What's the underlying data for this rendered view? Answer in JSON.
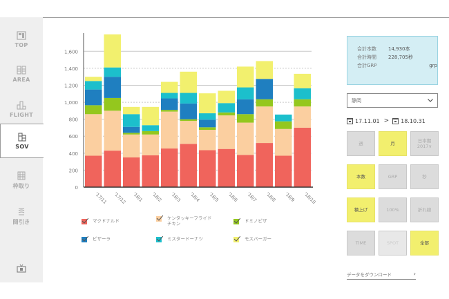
{
  "sidebar": {
    "items": [
      {
        "label": "TOP",
        "icon": "dashboard-icon"
      },
      {
        "label": "AREA",
        "icon": "grid-icon"
      },
      {
        "label": "FLIGHT",
        "icon": "bars-icon"
      },
      {
        "label": "SOV",
        "icon": "stacked-bars-icon",
        "active": true
      },
      {
        "label": "枠取り",
        "icon": "table-icon"
      },
      {
        "label": "間引き",
        "icon": "layers-icon"
      }
    ],
    "bottom_icon": "tv-icon"
  },
  "summary": {
    "rows": [
      {
        "key": "合計本数",
        "value": "14,930本"
      },
      {
        "key": "合計時間",
        "value": "228,705秒"
      },
      {
        "key": "合計GRP",
        "value": "grp"
      }
    ]
  },
  "region_select": {
    "value": "静岡"
  },
  "date_range": {
    "start": "17.11.01",
    "separator": ">",
    "end": "18.10.31"
  },
  "buttons": [
    {
      "label": "週",
      "state": "off"
    },
    {
      "label": "月",
      "state": "on"
    },
    {
      "label": "日本期\n2017∨",
      "state": "off"
    },
    {
      "label": "本数",
      "state": "on"
    },
    {
      "label": "GRP",
      "state": "off"
    },
    {
      "label": "秒",
      "state": "off"
    },
    {
      "label": "積上げ",
      "state": "on"
    },
    {
      "label": "100%",
      "state": "off"
    },
    {
      "label": "折れ線",
      "state": "off"
    },
    {
      "label": "TIME",
      "state": "off"
    },
    {
      "label": "SPOT",
      "state": "faded"
    },
    {
      "label": "全部",
      "state": "on"
    }
  ],
  "download_link": {
    "label": "データをダウンロード",
    "chevron": "›"
  },
  "colors": {
    "mcdonalds": "#f0645c",
    "kfc": "#fbcfa0",
    "dominos": "#94c71e",
    "pizzala": "#1f7fc0",
    "misdo": "#1cbfcc",
    "mos": "#f2f06e",
    "summary_bg": "#d4eef4",
    "active_button": "#f2ef6e"
  },
  "chart_data": {
    "type": "bar",
    "stacked": true,
    "title": "",
    "xlabel": "",
    "ylabel": "",
    "ylim": [
      0,
      1800
    ],
    "yticks": [
      0,
      200,
      400,
      600,
      800,
      1000,
      1200,
      1400,
      1600
    ],
    "ytick_labels": [
      "0",
      "200",
      "400",
      "600",
      "800",
      "1,000",
      "1,200",
      "1,400",
      "1,600"
    ],
    "grid": true,
    "categories": [
      "'17/11",
      "'17/12",
      "'18/1",
      "'18/2",
      "'18/3",
      "'18/4",
      "'18/5",
      "'18/6",
      "'18/7",
      "'18/8",
      "'18/9",
      "'18/10"
    ],
    "series": [
      {
        "name": "マクドナルド",
        "color": "#f0645c",
        "values": [
          370,
          430,
          350,
          375,
          455,
          510,
          435,
          450,
          380,
          520,
          370,
          700
        ]
      },
      {
        "name": "ケンタッキーフライドチキン",
        "color": "#fbcfa0",
        "values": [
          490,
          470,
          270,
          245,
          435,
          270,
          240,
          395,
          380,
          430,
          315,
          250
        ]
      },
      {
        "name": "ドミノピザ",
        "color": "#94c71e",
        "values": [
          105,
          150,
          20,
          40,
          20,
          20,
          30,
          35,
          100,
          85,
          90,
          85
        ]
      },
      {
        "name": "ピザーラ",
        "color": "#1f7fc0",
        "values": [
          185,
          250,
          70,
          0,
          135,
          185,
          90,
          0,
          175,
          240,
          0,
          0
        ]
      },
      {
        "name": "ミスタードーナツ",
        "color": "#1cbfcc",
        "values": [
          100,
          110,
          150,
          70,
          65,
          125,
          75,
          110,
          140,
          0,
          80,
          130
        ]
      },
      {
        "name": "モスバーガー",
        "color": "#f2f06e",
        "values": [
          50,
          390,
          85,
          215,
          130,
          250,
          235,
          145,
          245,
          210,
          0,
          170
        ]
      }
    ],
    "legend": {
      "placement": "bottom",
      "entries": [
        "マクドナルド",
        "ケンタッキーフライド\nチキン",
        "ドミノピザ",
        "ピザーラ",
        "ミスタードーナツ",
        "モスバーガー"
      ]
    }
  }
}
